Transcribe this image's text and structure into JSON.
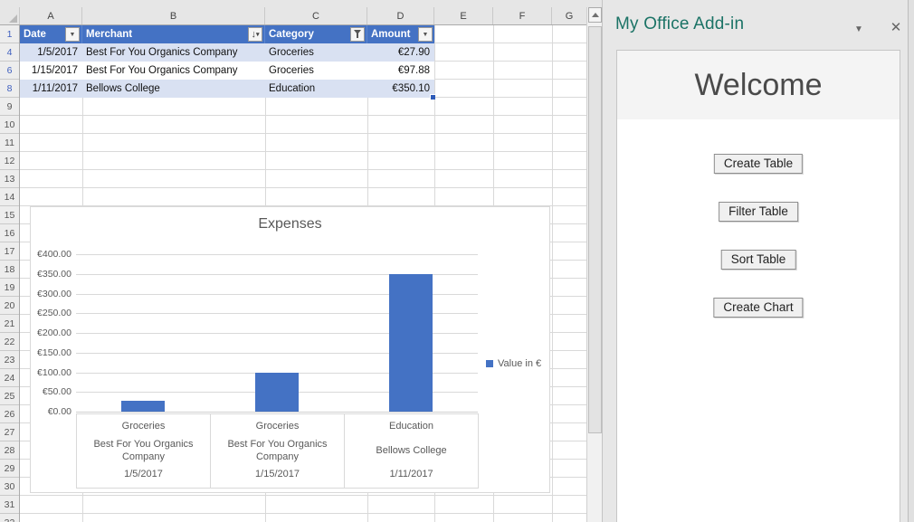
{
  "sheet": {
    "columns": [
      "A",
      "B",
      "C",
      "D",
      "E",
      "F",
      "G"
    ],
    "row_numbers": [
      "1",
      "4",
      "6",
      "8",
      "9",
      "10",
      "11",
      "12",
      "13",
      "14",
      "15",
      "16",
      "17",
      "18",
      "19",
      "20",
      "21",
      "22",
      "23",
      "24",
      "25",
      "26",
      "27",
      "28",
      "29",
      "30",
      "31",
      "32"
    ],
    "filtered_row_numbers": [
      "1",
      "4",
      "6",
      "8"
    ],
    "scrollbar_icon": "scroll-up-arrow-icon",
    "select_all_icon": "select-all-corner-icon"
  },
  "table": {
    "columns": [
      {
        "label": "Date",
        "filter_icon": "dropdown-icon"
      },
      {
        "label": "Merchant",
        "filter_icon": "sort-dropdown-icon"
      },
      {
        "label": "Category",
        "filter_icon": "filter-funnel-icon"
      },
      {
        "label": "Amount",
        "filter_icon": "dropdown-icon"
      }
    ],
    "rows": [
      {
        "row": "4",
        "date": "1/5/2017",
        "merchant": "Best For You Organics Company",
        "category": "Groceries",
        "amount": "€27.90",
        "banded": true
      },
      {
        "row": "6",
        "date": "1/15/2017",
        "merchant": "Best For You Organics Company",
        "category": "Groceries",
        "amount": "€97.88",
        "banded": false
      },
      {
        "row": "8",
        "date": "1/11/2017",
        "merchant": "Bellows College",
        "category": "Education",
        "amount": "€350.10",
        "banded": true
      }
    ],
    "header_color": "#4472C4",
    "band_color": "#D9E1F2"
  },
  "chart_data": {
    "type": "bar",
    "title": "Expenses",
    "values": [
      27.9,
      97.88,
      350.1
    ],
    "x_multiline_labels": [
      [
        "Groceries",
        "Best For You Organics Company",
        "1/5/2017"
      ],
      [
        "Groceries",
        "Best For You Organics Company",
        "1/15/2017"
      ],
      [
        "Education",
        "Bellows College",
        "1/11/2017"
      ]
    ],
    "ylim": [
      0,
      400
    ],
    "ytick_step": 50,
    "ytick_labels": [
      "€0.00",
      "€50.00",
      "€100.00",
      "€150.00",
      "€200.00",
      "€250.00",
      "€300.00",
      "€350.00",
      "€400.00"
    ],
    "legend": [
      {
        "label": "Value in €",
        "color": "#4472C4"
      }
    ],
    "legend_position": "right",
    "grid": true,
    "bar_color": "#4472C4",
    "xlabel": "",
    "ylabel": ""
  },
  "taskpane": {
    "title": "My Office Add-in",
    "title_color": "#1B7366",
    "collapse_icon": "chevron-down-icon",
    "collapse_glyph": "▼",
    "close_icon": "close-icon",
    "close_glyph": "✕",
    "welcome_heading": "Welcome",
    "buttons": [
      {
        "label": "Create Table"
      },
      {
        "label": "Filter Table"
      },
      {
        "label": "Sort Table"
      },
      {
        "label": "Create Chart"
      }
    ]
  }
}
